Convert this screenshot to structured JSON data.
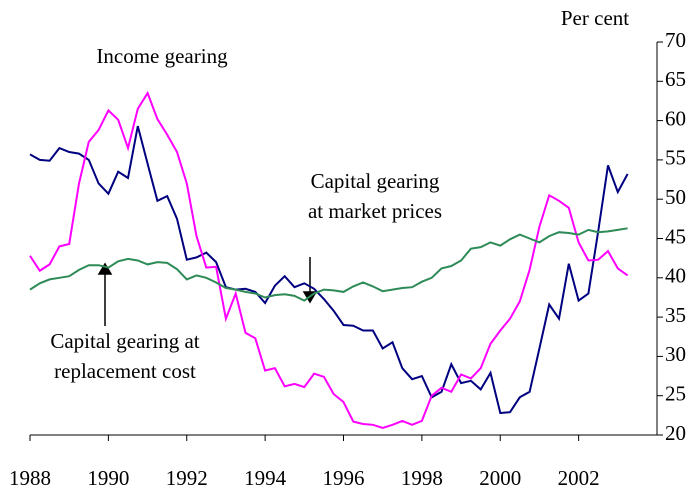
{
  "chart_data": {
    "type": "line",
    "y_label": "Per cent",
    "annotations": [
      {
        "lines": [
          "Income gearing"
        ]
      },
      {
        "lines": [
          "Capital gearing",
          "at market prices"
        ]
      },
      {
        "lines": [
          "Capital gearing at",
          "replacement cost"
        ]
      }
    ],
    "x": [
      1988,
      1988.25,
      1988.5,
      1988.75,
      1989,
      1989.25,
      1989.5,
      1989.75,
      1990,
      1990.25,
      1990.5,
      1990.75,
      1991,
      1991.25,
      1991.5,
      1991.75,
      1992,
      1992.25,
      1992.5,
      1992.75,
      1993,
      1993.25,
      1993.5,
      1993.75,
      1994,
      1994.25,
      1994.5,
      1994.75,
      1995,
      1995.25,
      1995.5,
      1995.75,
      1996,
      1996.25,
      1996.5,
      1996.75,
      1997,
      1997.25,
      1997.5,
      1997.75,
      1998,
      1998.25,
      1998.5,
      1998.75,
      1999,
      1999.25,
      1999.5,
      1999.75,
      2000,
      2000.25,
      2000.5,
      2000.75,
      2001,
      2001.25,
      2001.5,
      2001.75,
      2002,
      2002.25,
      2002.5,
      2002.75,
      2003,
      2003.25
    ],
    "series": [
      {
        "color": "#000080",
        "values": [
          55.7,
          55,
          54.9,
          56.5,
          56,
          55.8,
          55,
          52,
          50.7,
          53.5,
          52.7,
          59.3,
          54.5,
          49.8,
          50.4,
          47.5,
          42.3,
          42.6,
          43.2,
          42,
          38.8,
          38.5,
          38.6,
          38.2,
          36.8,
          39,
          40.2,
          38.8,
          39.3,
          38.6,
          37.3,
          35.8,
          34,
          33.9,
          33.3,
          33.3,
          31,
          31.8,
          28.5,
          27.1,
          27.5,
          24.8,
          25.5,
          29,
          26.6,
          26.9,
          25.8,
          27.9,
          22.8,
          22.9,
          24.8,
          25.5,
          31,
          36.6,
          34.8,
          41.8,
          37.1,
          38,
          45.9,
          54.3,
          50.9,
          53.2
        ]
      },
      {
        "color": "#ff00ff",
        "values": [
          42.8,
          40.9,
          41.7,
          44,
          44.3,
          52,
          57.3,
          58.8,
          61.3,
          60.1,
          56.5,
          61.5,
          63.5,
          60.2,
          58.2,
          56,
          52,
          45.3,
          41.3,
          41.4,
          34.8,
          38,
          33,
          32.3,
          28.2,
          28.5,
          26.2,
          26.5,
          26.1,
          27.8,
          27.4,
          25.2,
          24.2,
          21.7,
          21.4,
          21.3,
          20.9,
          21.3,
          21.8,
          21.3,
          21.8,
          25,
          26,
          25.5,
          27.7,
          27.2,
          28.5,
          31.6,
          33.3,
          34.8,
          37,
          41,
          46.5,
          50.5,
          49.8,
          48.9,
          44.5,
          42.2,
          42.3,
          43.4,
          41.2,
          40.3
        ]
      },
      {
        "color": "#2e8b57",
        "values": [
          38.5,
          39.3,
          39.8,
          40,
          40.2,
          41,
          41.6,
          41.6,
          41.3,
          42.1,
          42.4,
          42.2,
          41.7,
          42,
          41.9,
          41.1,
          39.8,
          40.3,
          40,
          39.4,
          38.7,
          38.5,
          38.2,
          38,
          37.5,
          37.8,
          37.9,
          37.7,
          37.1,
          38,
          38.5,
          38.4,
          38.2,
          38.9,
          39.4,
          38.9,
          38.3,
          38.5,
          38.7,
          38.8,
          39.5,
          40,
          41.2,
          41.5,
          42.2,
          43.7,
          43.9,
          44.5,
          44.1,
          44.9,
          45.5,
          45,
          44.5,
          45.3,
          45.8,
          45.7,
          45.5,
          46.1,
          45.8,
          45.9,
          46.1,
          46.3
        ]
      }
    ],
    "xlim": [
      1988,
      2004
    ],
    "xticks": [
      1988,
      1990,
      1992,
      1994,
      1996,
      1998,
      2000,
      2002
    ],
    "ylim": [
      20,
      70
    ],
    "yticks": [
      20,
      25,
      30,
      35,
      40,
      45,
      50,
      55,
      60,
      65,
      70
    ],
    "y_axis_side": "right"
  }
}
